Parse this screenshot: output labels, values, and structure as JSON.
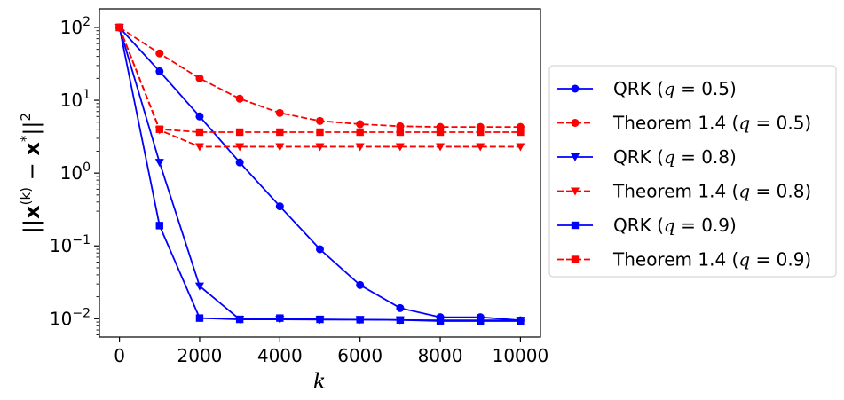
{
  "chart_data": {
    "type": "line",
    "xlabel": "k",
    "ylabel": "||x(k) − x*||²",
    "ylabel_parts": {
      "open": "||",
      "x": "x",
      "sup_k": "(k)",
      "minus": " − ",
      "star": "*",
      "close": "||",
      "sq": "2"
    },
    "yscale": "log",
    "xlim": [
      -500,
      10500
    ],
    "ylim": [
      0.0056,
      180
    ],
    "x_ticks": [
      0,
      2000,
      4000,
      6000,
      8000,
      10000
    ],
    "x_tick_labels": [
      "0",
      "2000",
      "4000",
      "6000",
      "8000",
      "10000"
    ],
    "y_ticks": [
      0.01,
      0.1,
      1,
      10,
      100
    ],
    "y_tick_labels": [
      {
        "base": "10",
        "exp": "−2"
      },
      {
        "base": "10",
        "exp": "−1"
      },
      {
        "base": "10",
        "exp": "0"
      },
      {
        "base": "10",
        "exp": "1"
      },
      {
        "base": "10",
        "exp": "2"
      }
    ],
    "grid": false,
    "legend_position": "outside-right",
    "series": [
      {
        "name": "QRK (q = 0.5)",
        "label_prefix": "QRK (",
        "q_sym": "q",
        "q_value": " = 0.5",
        "label_suffix": ")",
        "color": "#0000ff",
        "dash": "solid",
        "marker": "circle",
        "x": [
          0,
          1000,
          2000,
          3000,
          4000,
          5000,
          6000,
          7000,
          8000,
          9000,
          10000
        ],
        "y": [
          100,
          25,
          6,
          1.4,
          0.35,
          0.09,
          0.029,
          0.014,
          0.0105,
          0.0105,
          0.0095
        ]
      },
      {
        "name": "Theorem 1.4 (q = 0.5)",
        "label_prefix": "Theorem 1.4 (",
        "q_sym": "q",
        "q_value": " = 0.5",
        "label_suffix": ")",
        "color": "#ff0000",
        "dash": "dashed",
        "marker": "circle",
        "x": [
          0,
          1000,
          2000,
          3000,
          4000,
          5000,
          6000,
          7000,
          8000,
          9000,
          10000
        ],
        "y": [
          100,
          44,
          20,
          10.5,
          6.7,
          5.2,
          4.7,
          4.4,
          4.3,
          4.3,
          4.3
        ]
      },
      {
        "name": "QRK (q = 0.8)",
        "label_prefix": "QRK (",
        "q_sym": "q",
        "q_value": " = 0.8",
        "label_suffix": ")",
        "color": "#0000ff",
        "dash": "solid",
        "marker": "triangle-down",
        "x": [
          0,
          1000,
          2000,
          3000,
          4000,
          5000,
          6000,
          7000,
          8000,
          9000,
          10000
        ],
        "y": [
          100,
          1.4,
          0.028,
          0.0098,
          0.0098,
          0.0097,
          0.0097,
          0.0096,
          0.0095,
          0.0095,
          0.0095
        ]
      },
      {
        "name": "Theorem 1.4 (q = 0.8)",
        "label_prefix": "Theorem 1.4 (",
        "q_sym": "q",
        "q_value": " = 0.8",
        "label_suffix": ")",
        "color": "#ff0000",
        "dash": "dashed",
        "marker": "triangle-down",
        "x": [
          0,
          1000,
          2000,
          3000,
          4000,
          5000,
          6000,
          7000,
          8000,
          9000,
          10000
        ],
        "y": [
          100,
          3.9,
          2.3,
          2.3,
          2.3,
          2.3,
          2.3,
          2.3,
          2.3,
          2.3,
          2.3
        ]
      },
      {
        "name": "QRK (q = 0.9)",
        "label_prefix": "QRK (",
        "q_sym": "q",
        "q_value": " = 0.9",
        "label_suffix": ")",
        "color": "#0000ff",
        "dash": "solid",
        "marker": "square",
        "x": [
          0,
          1000,
          2000,
          3000,
          4000,
          5000,
          6000,
          7000,
          8000,
          9000,
          10000
        ],
        "y": [
          100,
          0.19,
          0.0102,
          0.0098,
          0.0102,
          0.0098,
          0.0097,
          0.0096,
          0.0093,
          0.0093,
          0.0093
        ]
      },
      {
        "name": "Theorem 1.4 (q = 0.9)",
        "label_prefix": "Theorem 1.4 (",
        "q_sym": "q",
        "q_value": " = 0.9",
        "label_suffix": ")",
        "color": "#ff0000",
        "dash": "dashed",
        "marker": "square",
        "x": [
          0,
          1000,
          2000,
          3000,
          4000,
          5000,
          6000,
          7000,
          8000,
          9000,
          10000
        ],
        "y": [
          100,
          4.0,
          3.65,
          3.65,
          3.65,
          3.65,
          3.65,
          3.65,
          3.65,
          3.65,
          3.65
        ]
      }
    ]
  }
}
